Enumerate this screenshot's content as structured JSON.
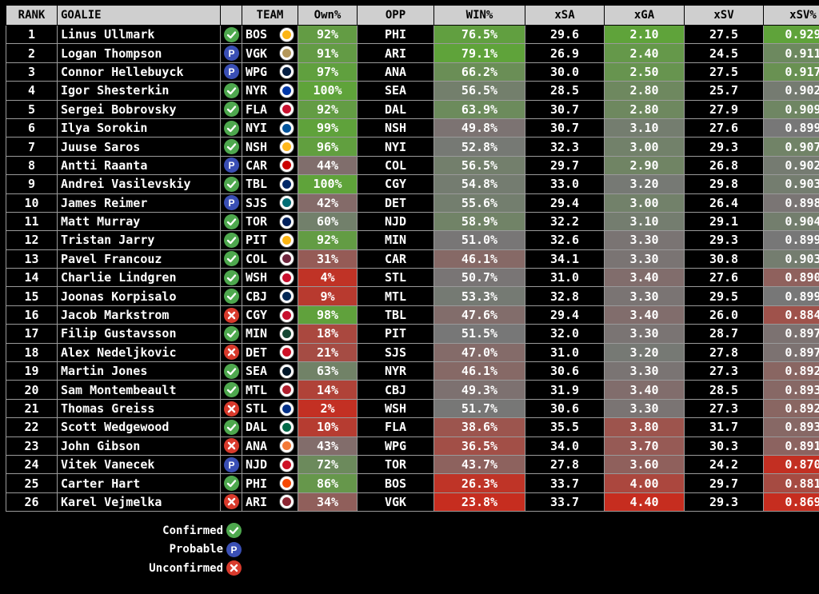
{
  "colors": {
    "good": "#5fa33a",
    "neutral": "#777777",
    "bad": "#c62d1f",
    "confirmed": "#4ea84e",
    "probable": "#3a4fb5",
    "unconfirmed": "#d83a2c"
  },
  "headers": {
    "rank": "RANK",
    "goalie": "GOALIE",
    "status": "",
    "team": "TEAM",
    "own": "Own%",
    "opp": "OPP",
    "win": "WIN%",
    "xsa": "xSA",
    "xga": "xGA",
    "xsv": "xSV",
    "xsvp": "xSV%"
  },
  "rows": [
    {
      "rank": "1",
      "goalie": "Linus Ullmark",
      "status": "confirmed",
      "team": "BOS",
      "logo_icon": "bruins-logo-icon",
      "own": "92%",
      "opp": "PHI",
      "win": "76.5%",
      "xsa": "29.6",
      "xga": "2.10",
      "xsv": "27.5",
      "xsvp": "0.929"
    },
    {
      "rank": "2",
      "goalie": "Logan Thompson",
      "status": "probable",
      "team": "VGK",
      "logo_icon": "golden-knights-logo-icon",
      "own": "91%",
      "opp": "ARI",
      "win": "79.1%",
      "xsa": "26.9",
      "xga": "2.40",
      "xsv": "24.5",
      "xsvp": "0.911"
    },
    {
      "rank": "3",
      "goalie": "Connor Hellebuyck",
      "status": "probable",
      "team": "WPG",
      "logo_icon": "jets-logo-icon",
      "own": "97%",
      "opp": "ANA",
      "win": "66.2%",
      "xsa": "30.0",
      "xga": "2.50",
      "xsv": "27.5",
      "xsvp": "0.917"
    },
    {
      "rank": "4",
      "goalie": "Igor Shesterkin",
      "status": "confirmed",
      "team": "NYR",
      "logo_icon": "rangers-logo-icon",
      "own": "100%",
      "opp": "SEA",
      "win": "56.5%",
      "xsa": "28.5",
      "xga": "2.80",
      "xsv": "25.7",
      "xsvp": "0.902"
    },
    {
      "rank": "5",
      "goalie": "Sergei Bobrovsky",
      "status": "confirmed",
      "team": "FLA",
      "logo_icon": "panthers-logo-icon",
      "own": "92%",
      "opp": "DAL",
      "win": "63.9%",
      "xsa": "30.7",
      "xga": "2.80",
      "xsv": "27.9",
      "xsvp": "0.909"
    },
    {
      "rank": "6",
      "goalie": "Ilya Sorokin",
      "status": "confirmed",
      "team": "NYI",
      "logo_icon": "islanders-logo-icon",
      "own": "99%",
      "opp": "NSH",
      "win": "49.8%",
      "xsa": "30.7",
      "xga": "3.10",
      "xsv": "27.6",
      "xsvp": "0.899"
    },
    {
      "rank": "7",
      "goalie": "Juuse Saros",
      "status": "confirmed",
      "team": "NSH",
      "logo_icon": "predators-logo-icon",
      "own": "96%",
      "opp": "NYI",
      "win": "52.8%",
      "xsa": "32.3",
      "xga": "3.00",
      "xsv": "29.3",
      "xsvp": "0.907"
    },
    {
      "rank": "8",
      "goalie": "Antti Raanta",
      "status": "probable",
      "team": "CAR",
      "logo_icon": "hurricanes-logo-icon",
      "own": "44%",
      "opp": "COL",
      "win": "56.5%",
      "xsa": "29.7",
      "xga": "2.90",
      "xsv": "26.8",
      "xsvp": "0.902"
    },
    {
      "rank": "9",
      "goalie": "Andrei Vasilevskiy",
      "status": "confirmed",
      "team": "TBL",
      "logo_icon": "lightning-logo-icon",
      "own": "100%",
      "opp": "CGY",
      "win": "54.8%",
      "xsa": "33.0",
      "xga": "3.20",
      "xsv": "29.8",
      "xsvp": "0.903"
    },
    {
      "rank": "10",
      "goalie": "James Reimer",
      "status": "probable",
      "team": "SJS",
      "logo_icon": "sharks-logo-icon",
      "own": "42%",
      "opp": "DET",
      "win": "55.6%",
      "xsa": "29.4",
      "xga": "3.00",
      "xsv": "26.4",
      "xsvp": "0.898"
    },
    {
      "rank": "11",
      "goalie": "Matt Murray",
      "status": "confirmed",
      "team": "TOR",
      "logo_icon": "maple-leafs-logo-icon",
      "own": "60%",
      "opp": "NJD",
      "win": "58.9%",
      "xsa": "32.2",
      "xga": "3.10",
      "xsv": "29.1",
      "xsvp": "0.904"
    },
    {
      "rank": "12",
      "goalie": "Tristan Jarry",
      "status": "confirmed",
      "team": "PIT",
      "logo_icon": "penguins-logo-icon",
      "own": "92%",
      "opp": "MIN",
      "win": "51.0%",
      "xsa": "32.6",
      "xga": "3.30",
      "xsv": "29.3",
      "xsvp": "0.899"
    },
    {
      "rank": "13",
      "goalie": "Pavel Francouz",
      "status": "confirmed",
      "team": "COL",
      "logo_icon": "avalanche-logo-icon",
      "own": "31%",
      "opp": "CAR",
      "win": "46.1%",
      "xsa": "34.1",
      "xga": "3.30",
      "xsv": "30.8",
      "xsvp": "0.903"
    },
    {
      "rank": "14",
      "goalie": "Charlie Lindgren",
      "status": "confirmed",
      "team": "WSH",
      "logo_icon": "capitals-logo-icon",
      "own": "4%",
      "opp": "STL",
      "win": "50.7%",
      "xsa": "31.0",
      "xga": "3.40",
      "xsv": "27.6",
      "xsvp": "0.890"
    },
    {
      "rank": "15",
      "goalie": "Joonas Korpisalo",
      "status": "confirmed",
      "team": "CBJ",
      "logo_icon": "blue-jackets-logo-icon",
      "own": "9%",
      "opp": "MTL",
      "win": "53.3%",
      "xsa": "32.8",
      "xga": "3.30",
      "xsv": "29.5",
      "xsvp": "0.899"
    },
    {
      "rank": "16",
      "goalie": "Jacob Markstrom",
      "status": "unconfirmed",
      "team": "CGY",
      "logo_icon": "flames-logo-icon",
      "own": "98%",
      "opp": "TBL",
      "win": "47.6%",
      "xsa": "29.4",
      "xga": "3.40",
      "xsv": "26.0",
      "xsvp": "0.884"
    },
    {
      "rank": "17",
      "goalie": "Filip Gustavsson",
      "status": "confirmed",
      "team": "MIN",
      "logo_icon": "wild-logo-icon",
      "own": "18%",
      "opp": "PIT",
      "win": "51.5%",
      "xsa": "32.0",
      "xga": "3.30",
      "xsv": "28.7",
      "xsvp": "0.897"
    },
    {
      "rank": "18",
      "goalie": "Alex Nedeljkovic",
      "status": "unconfirmed",
      "team": "DET",
      "logo_icon": "red-wings-logo-icon",
      "own": "21%",
      "opp": "SJS",
      "win": "47.0%",
      "xsa": "31.0",
      "xga": "3.20",
      "xsv": "27.8",
      "xsvp": "0.897"
    },
    {
      "rank": "19",
      "goalie": "Martin Jones",
      "status": "confirmed",
      "team": "SEA",
      "logo_icon": "kraken-logo-icon",
      "own": "63%",
      "opp": "NYR",
      "win": "46.1%",
      "xsa": "30.6",
      "xga": "3.30",
      "xsv": "27.3",
      "xsvp": "0.892"
    },
    {
      "rank": "20",
      "goalie": "Sam Montembeault",
      "status": "confirmed",
      "team": "MTL",
      "logo_icon": "canadiens-logo-icon",
      "own": "14%",
      "opp": "CBJ",
      "win": "49.3%",
      "xsa": "31.9",
      "xga": "3.40",
      "xsv": "28.5",
      "xsvp": "0.893"
    },
    {
      "rank": "21",
      "goalie": "Thomas Greiss",
      "status": "unconfirmed",
      "team": "STL",
      "logo_icon": "blues-logo-icon",
      "own": "2%",
      "opp": "WSH",
      "win": "51.7%",
      "xsa": "30.6",
      "xga": "3.30",
      "xsv": "27.3",
      "xsvp": "0.892"
    },
    {
      "rank": "22",
      "goalie": "Scott Wedgewood",
      "status": "confirmed",
      "team": "DAL",
      "logo_icon": "stars-logo-icon",
      "own": "10%",
      "opp": "FLA",
      "win": "38.6%",
      "xsa": "35.5",
      "xga": "3.80",
      "xsv": "31.7",
      "xsvp": "0.893"
    },
    {
      "rank": "23",
      "goalie": "John Gibson",
      "status": "unconfirmed",
      "team": "ANA",
      "logo_icon": "ducks-logo-icon",
      "own": "43%",
      "opp": "WPG",
      "win": "36.5%",
      "xsa": "34.0",
      "xga": "3.70",
      "xsv": "30.3",
      "xsvp": "0.891"
    },
    {
      "rank": "24",
      "goalie": "Vitek Vanecek",
      "status": "probable",
      "team": "NJD",
      "logo_icon": "devils-logo-icon",
      "own": "72%",
      "opp": "TOR",
      "win": "43.7%",
      "xsa": "27.8",
      "xga": "3.60",
      "xsv": "24.2",
      "xsvp": "0.870"
    },
    {
      "rank": "25",
      "goalie": "Carter Hart",
      "status": "confirmed",
      "team": "PHI",
      "logo_icon": "flyers-logo-icon",
      "own": "86%",
      "opp": "BOS",
      "win": "26.3%",
      "xsa": "33.7",
      "xga": "4.00",
      "xsv": "29.7",
      "xsvp": "0.881"
    },
    {
      "rank": "26",
      "goalie": "Karel Vejmelka",
      "status": "unconfirmed",
      "team": "ARI",
      "logo_icon": "coyotes-logo-icon",
      "own": "34%",
      "opp": "VGK",
      "win": "23.8%",
      "xsa": "33.7",
      "xga": "4.40",
      "xsv": "29.3",
      "xsvp": "0.869"
    }
  ],
  "legend": [
    {
      "label": "Confirmed",
      "status": "confirmed"
    },
    {
      "label": "Probable",
      "status": "probable"
    },
    {
      "label": "Unconfirmed",
      "status": "unconfirmed"
    }
  ]
}
